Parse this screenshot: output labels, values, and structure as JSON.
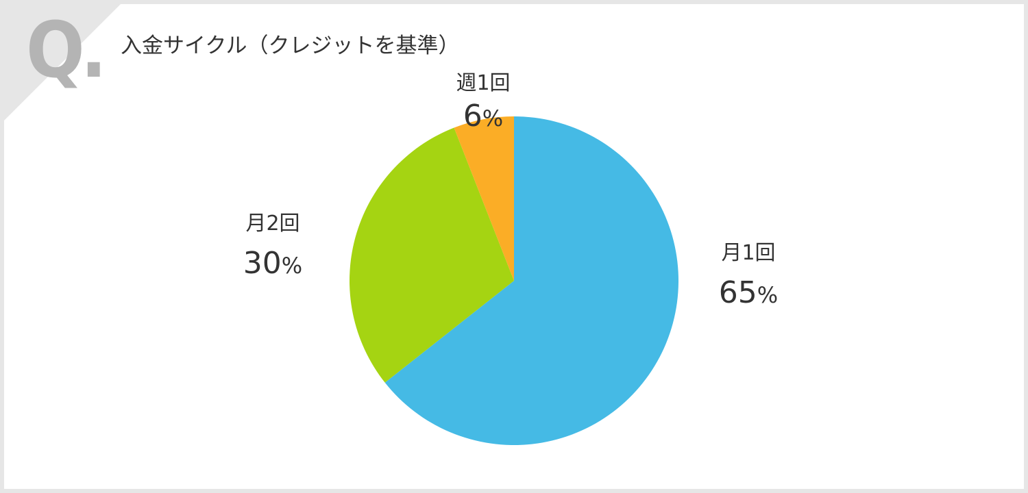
{
  "question_mark": "Q.",
  "title": "入金サイクル（クレジットを基準）",
  "colors": {
    "monthly1": "#45bae5",
    "monthly2": "#a5d412",
    "weekly1": "#fbad26",
    "background": "#e6e6e6",
    "card": "#ffffff",
    "text": "#333333"
  },
  "chart_data": {
    "type": "pie",
    "title": "入金サイクル（クレジットを基準）",
    "slices": [
      {
        "label": "月1回",
        "value": 65,
        "value_label": "65",
        "unit": "%",
        "color": "#45bae5"
      },
      {
        "label": "月2回",
        "value": 30,
        "value_label": "30",
        "unit": "%",
        "color": "#a5d412"
      },
      {
        "label": "週1回",
        "value": 6,
        "value_label": "6",
        "unit": "%",
        "color": "#fbad26"
      }
    ],
    "start_angle": "12 o'clock",
    "direction": "clockwise"
  }
}
